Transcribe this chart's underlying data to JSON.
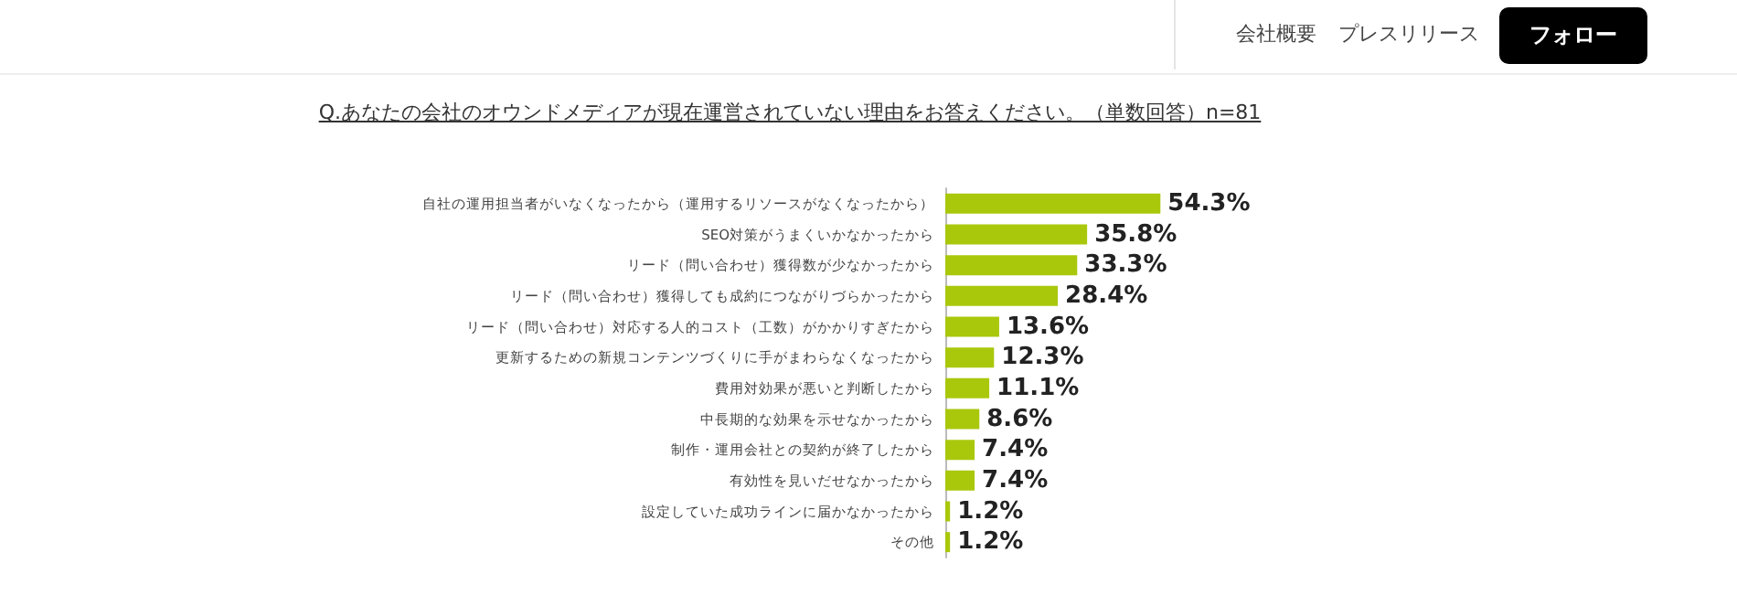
{
  "chart_data": {
    "type": "bar",
    "orientation": "horizontal",
    "title": "Q.あなたの会社のオウンドメディアが現在運営されていない理由をお答えください。（単数回答）n=81",
    "categories": [
      "自社の運用担当者がいなくなったから（運用するリソースがなくなったから）",
      "SEO対策がうまくいかなかったから",
      "リード（問い合わせ）獲得数が少なかったから",
      "リード（問い合わせ）獲得しても成約につながりづらかったから",
      "リード（問い合わせ）対応する人的コスト（工数）がかかりすぎたから",
      "更新するための新規コンテンツづくりに手がまわらなくなったから",
      "費用対効果が悪いと判断したから",
      "中長期的な効果を示せなかったから",
      "制作・運用会社との契約が終了したから",
      "有効性を見いだせなかったから",
      "設定していた成功ラインに届かなかったから",
      "その他"
    ],
    "values": [
      54.3,
      35.8,
      33.3,
      28.4,
      13.6,
      12.3,
      11.1,
      8.6,
      7.4,
      7.4,
      1.2,
      1.2
    ],
    "value_labels": [
      "54.3%",
      "35.8%",
      "33.3%",
      "28.4%",
      "13.6%",
      "12.3%",
      "11.1%",
      "8.6%",
      "7.4%",
      "7.4%",
      "1.2%",
      "1.2%"
    ],
    "color": "#a9c80c",
    "annotations": [
      "会社概要",
      "プレスリリース",
      "フォロー"
    ]
  }
}
